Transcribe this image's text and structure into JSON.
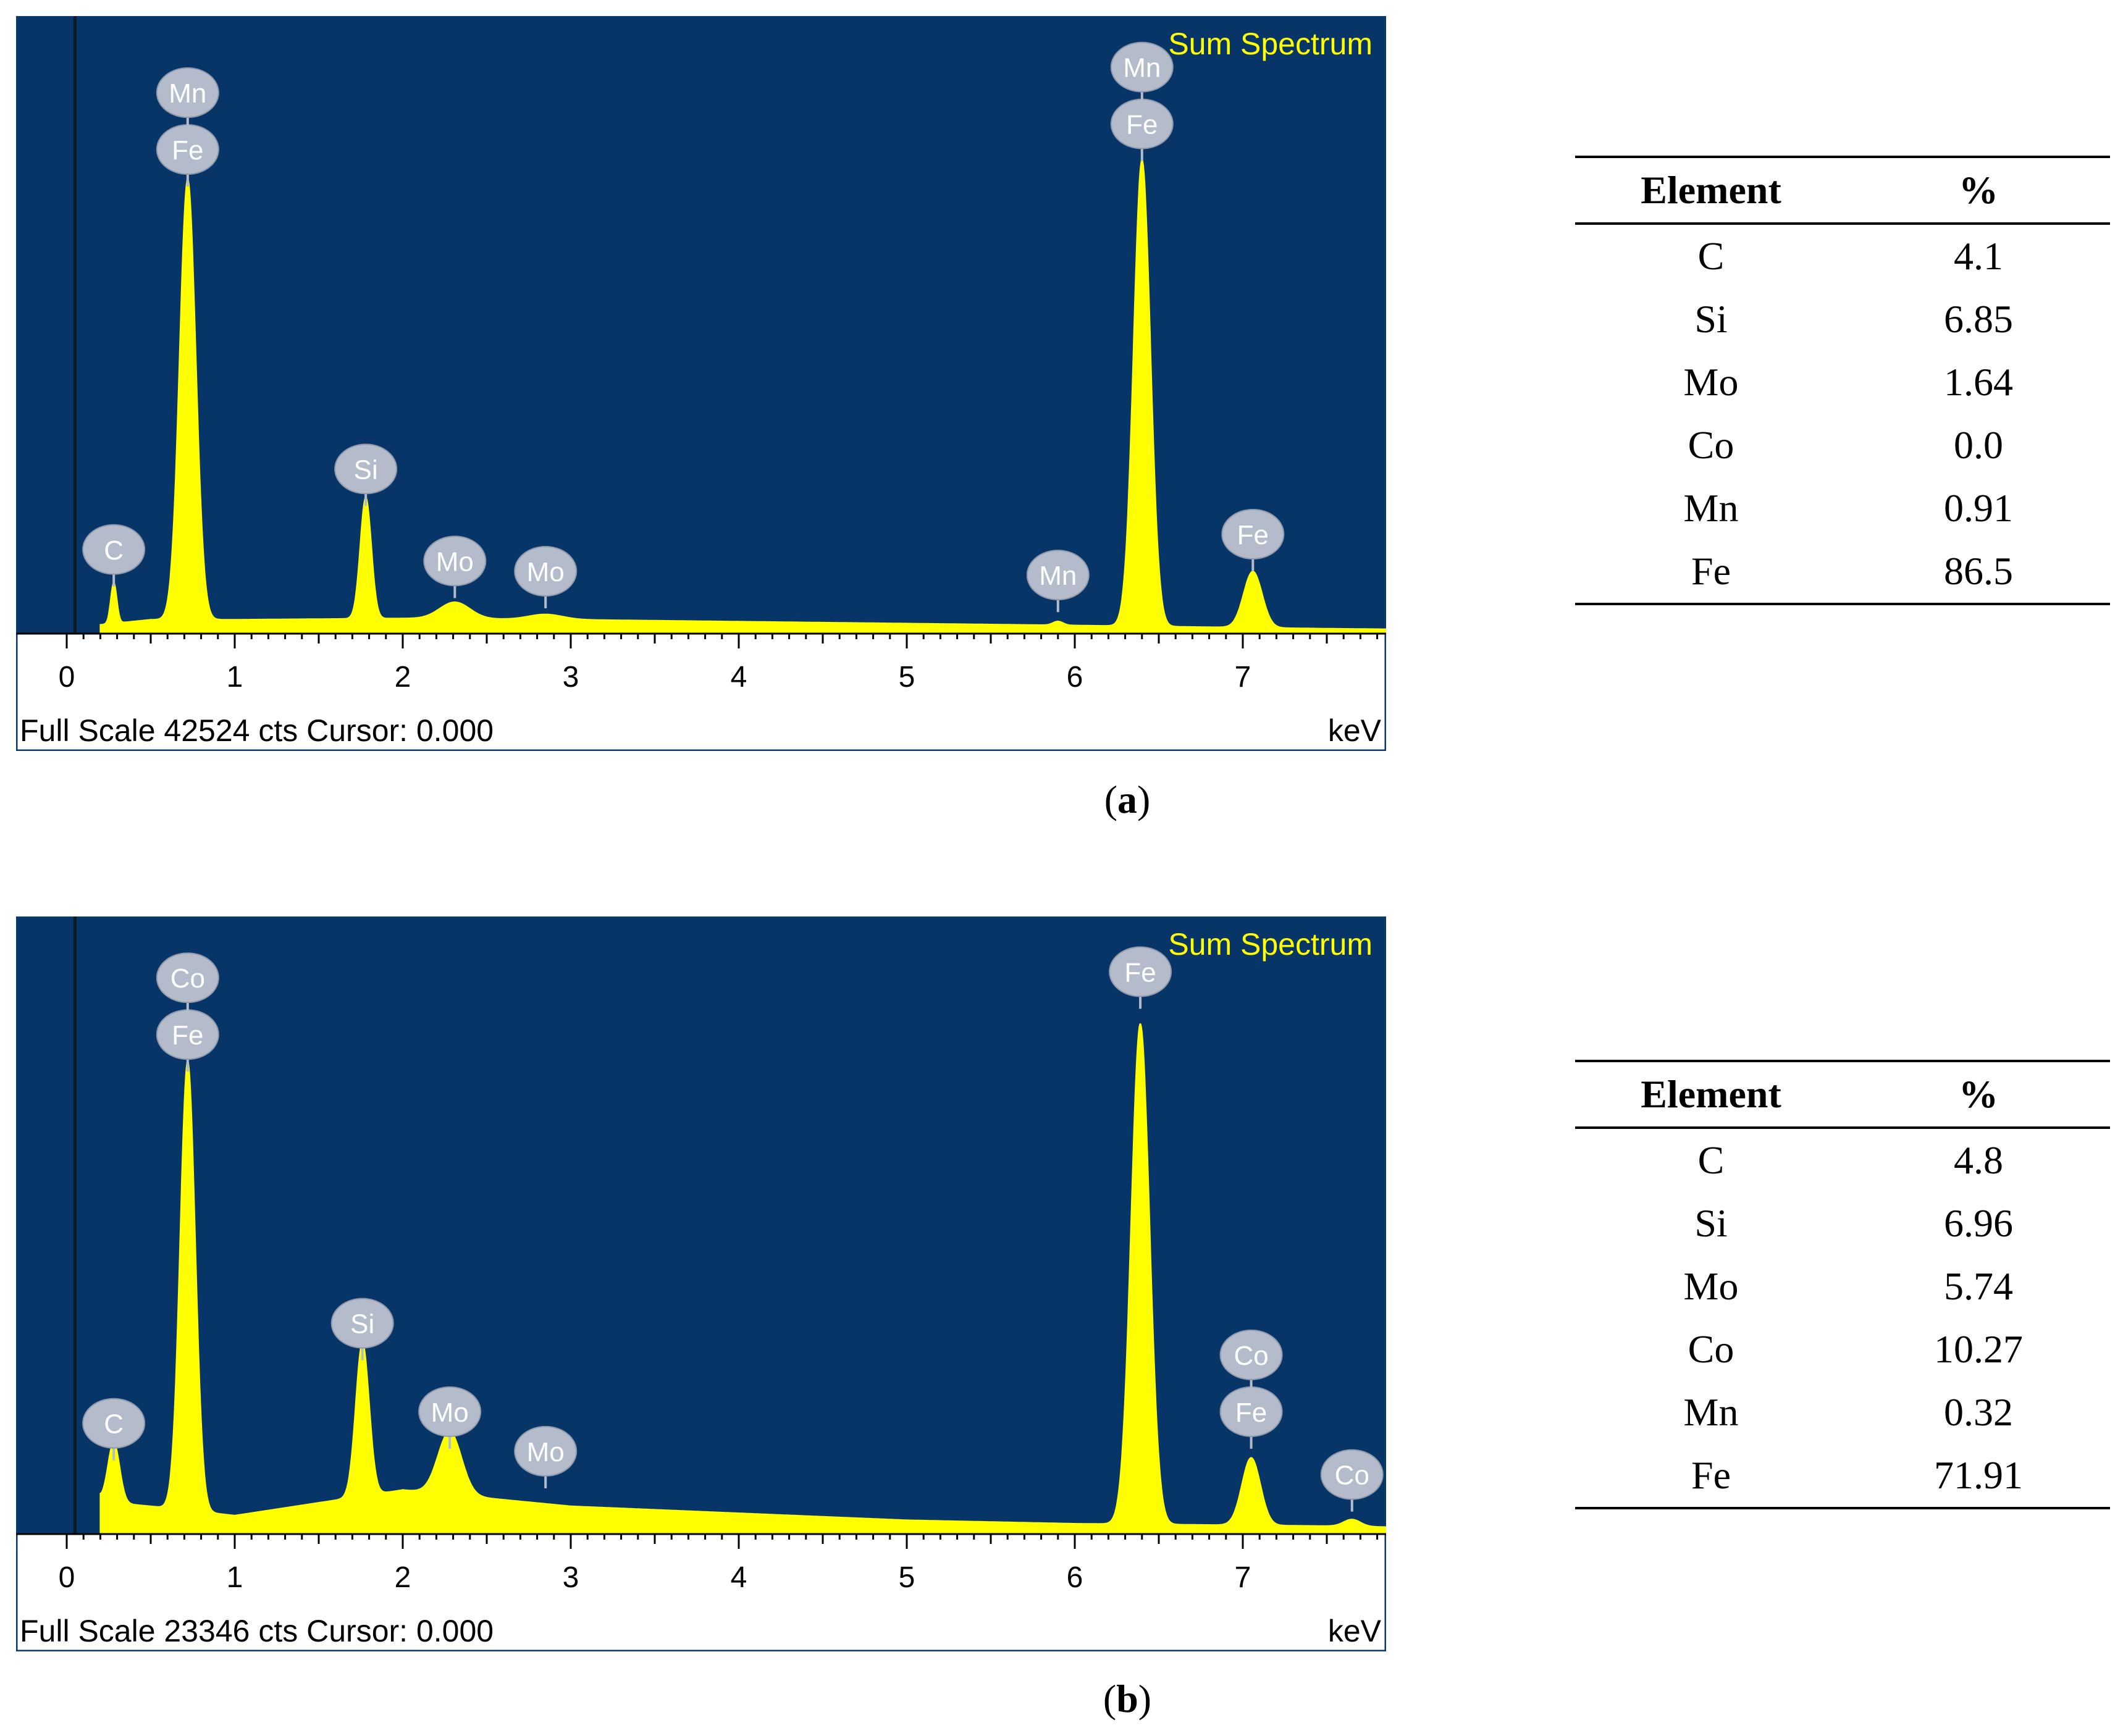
{
  "chart_data": [
    {
      "type": "area",
      "panel_label": "a",
      "title": "Sum Spectrum",
      "footer_left": "Full Scale 42524 cts Cursor: 0.000",
      "xlabel": "keV",
      "xlim": [
        0,
        7.9
      ],
      "x_ticks": [
        "0",
        "1",
        "2",
        "3",
        "4",
        "5",
        "6",
        "7"
      ],
      "ylim": [
        0,
        42524
      ],
      "colors": {
        "background": "#083567",
        "spectrum": "#ffff00",
        "title": "#ffff00",
        "axis_bg": "#ffffff",
        "label": "#b4bccb"
      },
      "baseline": {
        "x": [
          0.2,
          0.5,
          1.0,
          2.0,
          3.0,
          4.0,
          5.0,
          6.0,
          7.5,
          7.9
        ],
        "y": [
          700,
          1100,
          1100,
          1200,
          1100,
          950,
          800,
          650,
          400,
          350
        ]
      },
      "peaks": [
        {
          "energy": 0.28,
          "counts": 3200,
          "width": 0.018
        },
        {
          "energy": 0.72,
          "counts": 34500,
          "width": 0.048
        },
        {
          "energy": 1.78,
          "counts": 9500,
          "width": 0.033
        },
        {
          "energy": 2.31,
          "counts": 1300,
          "width": 0.09
        },
        {
          "energy": 2.85,
          "counts": 400,
          "width": 0.1
        },
        {
          "energy": 5.9,
          "counts": 300,
          "width": 0.03
        },
        {
          "energy": 6.4,
          "counts": 36500,
          "width": 0.05
        },
        {
          "energy": 7.06,
          "counts": 4400,
          "width": 0.055
        }
      ],
      "element_labels": [
        {
          "text": "C",
          "energy": 0.28,
          "counts": 3200
        },
        {
          "text": "Fe",
          "energy": 0.72,
          "counts": 34500
        },
        {
          "text": "Mn",
          "energy": 0.72,
          "counts": 34500
        },
        {
          "text": "Si",
          "energy": 1.78,
          "counts": 9500
        },
        {
          "text": "Mo",
          "energy": 2.31,
          "counts": 2300
        },
        {
          "text": "Mo",
          "energy": 2.85,
          "counts": 1500
        },
        {
          "text": "Mn",
          "energy": 5.9,
          "counts": 1200
        },
        {
          "text": "Fe",
          "energy": 6.4,
          "counts": 36500
        },
        {
          "text": "Mn",
          "energy": 6.4,
          "counts": 36500
        },
        {
          "text": "Fe",
          "energy": 7.06,
          "counts": 4400
        }
      ]
    },
    {
      "type": "area",
      "panel_label": "b",
      "title": "Sum Spectrum",
      "footer_left": "Full Scale 23346 cts Cursor: 0.000",
      "xlabel": "keV",
      "xlim": [
        0,
        7.9
      ],
      "x_ticks": [
        "0",
        "1",
        "2",
        "3",
        "4",
        "5",
        "6",
        "7"
      ],
      "ylim": [
        0,
        23346
      ],
      "colors": {
        "background": "#083567",
        "spectrum": "#ffff00",
        "title": "#ffff00",
        "axis_bg": "#ffffff",
        "label": "#b4bccb"
      },
      "baseline": {
        "x": [
          0.2,
          0.5,
          1.0,
          2.0,
          3.0,
          4.0,
          5.0,
          6.0,
          7.5,
          7.9
        ],
        "y": [
          1400,
          1200,
          800,
          1900,
          1200,
          900,
          600,
          450,
          350,
          300
        ]
      },
      "peaks": [
        {
          "energy": 0.1,
          "counts": 3500,
          "width": 0.04
        },
        {
          "energy": 0.28,
          "counts": 2600,
          "width": 0.035
        },
        {
          "energy": 0.72,
          "counts": 19300,
          "width": 0.045
        },
        {
          "energy": 1.76,
          "counts": 6600,
          "width": 0.04
        },
        {
          "energy": 2.28,
          "counts": 2700,
          "width": 0.07
        },
        {
          "energy": 6.39,
          "counts": 21500,
          "width": 0.055
        },
        {
          "energy": 7.05,
          "counts": 2900,
          "width": 0.055
        },
        {
          "energy": 7.65,
          "counts": 300,
          "width": 0.05
        }
      ],
      "element_labels": [
        {
          "text": "C",
          "energy": 0.28,
          "counts": 2900
        },
        {
          "text": "Fe",
          "energy": 0.72,
          "counts": 19600
        },
        {
          "text": "Co",
          "energy": 0.72,
          "counts": 19600
        },
        {
          "text": "Si",
          "energy": 1.76,
          "counts": 7200
        },
        {
          "text": "Mo",
          "energy": 2.28,
          "counts": 3400
        },
        {
          "text": "Mo",
          "energy": 2.85,
          "counts": 1700
        },
        {
          "text": "Fe",
          "energy": 6.39,
          "counts": 22300
        },
        {
          "text": "Fe",
          "energy": 7.05,
          "counts": 3400
        },
        {
          "text": "Co",
          "energy": 7.05,
          "counts": 3400
        },
        {
          "text": "Co",
          "energy": 7.65,
          "counts": 700
        }
      ]
    }
  ],
  "captions": {
    "a": "a",
    "b": "b"
  },
  "tables": {
    "a": {
      "headers": [
        "Element",
        "%"
      ],
      "rows": [
        [
          "C",
          "4.1"
        ],
        [
          "Si",
          "6.85"
        ],
        [
          "Mo",
          "1.64"
        ],
        [
          "Co",
          "0.0"
        ],
        [
          "Mn",
          "0.91"
        ],
        [
          "Fe",
          "86.5"
        ]
      ]
    },
    "b": {
      "headers": [
        "Element",
        "%"
      ],
      "rows": [
        [
          "C",
          "4.8"
        ],
        [
          "Si",
          "6.96"
        ],
        [
          "Mo",
          "5.74"
        ],
        [
          "Co",
          "10.27"
        ],
        [
          "Mn",
          "0.32"
        ],
        [
          "Fe",
          "71.91"
        ]
      ]
    }
  }
}
